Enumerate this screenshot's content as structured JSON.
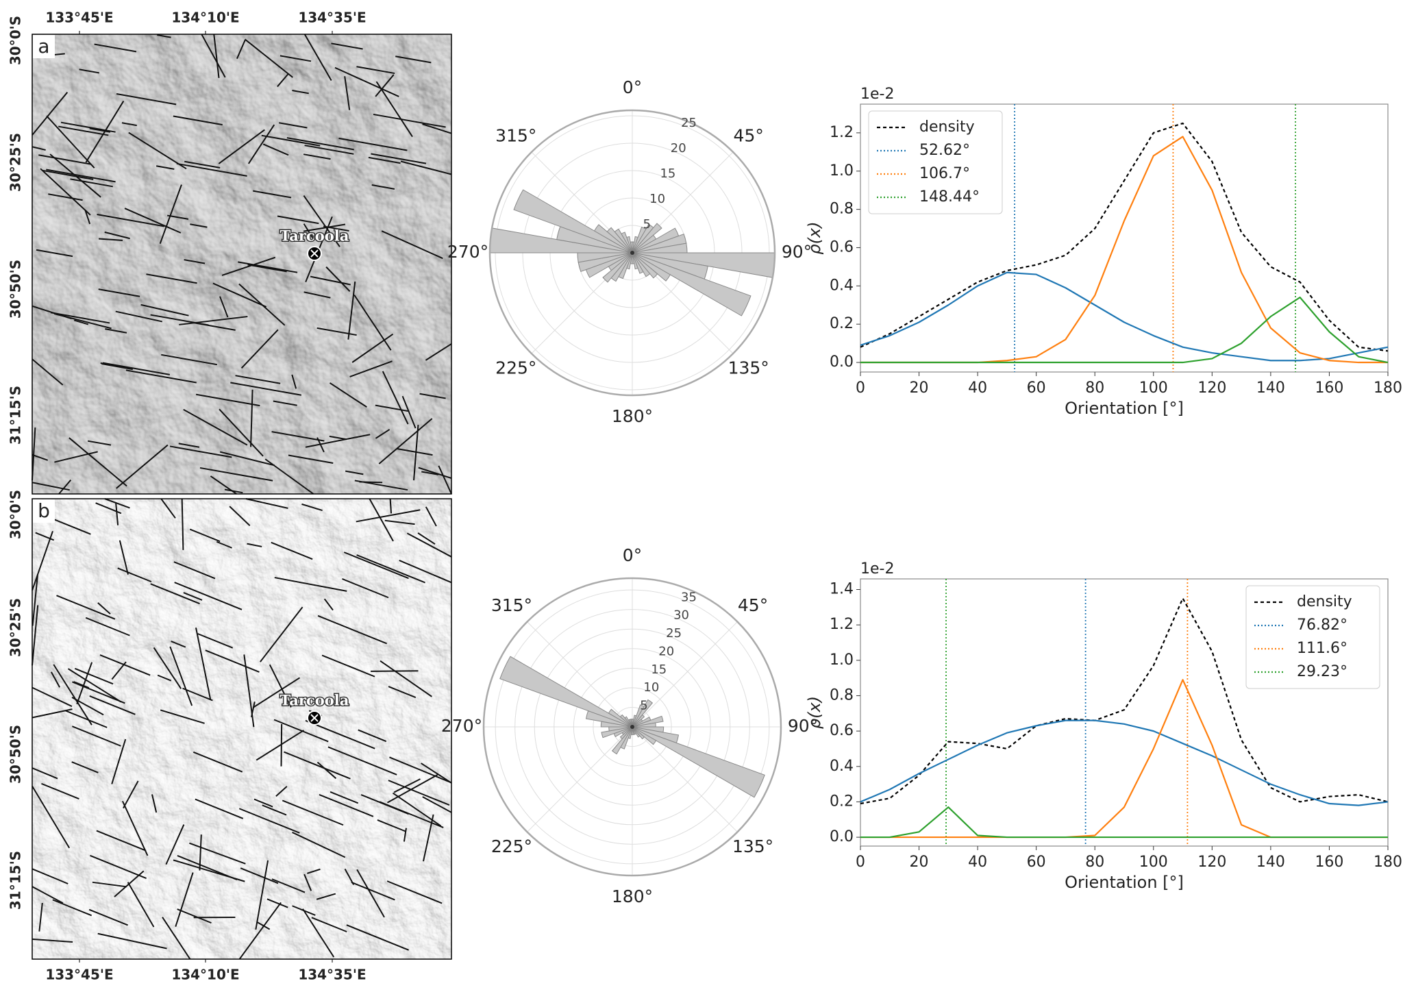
{
  "maps": [
    {
      "label": "a",
      "place": "Tarcoola",
      "lon_labels": [
        "133°45'E",
        "134°10'E",
        "134°35'E"
      ],
      "lat_labels": [
        "30°0'S",
        "30°25'S",
        "30°50'S",
        "31°15'S"
      ]
    },
    {
      "label": "b",
      "place": "Tarcoola",
      "lon_labels": [
        "133°45'E",
        "134°10'E",
        "134°35'E"
      ],
      "lat_labels": [
        "30°0'S",
        "30°25'S",
        "30°50'S",
        "31°15'S"
      ]
    }
  ],
  "chart_data": [
    {
      "type": "polar_bar",
      "angles": [
        5,
        15,
        25,
        35,
        45,
        55,
        65,
        75,
        85,
        95,
        105,
        115,
        125,
        135,
        145,
        155,
        165,
        175,
        185,
        195,
        205,
        215,
        225,
        235,
        245,
        255,
        265,
        275,
        285,
        295,
        305,
        315,
        325,
        335,
        345,
        355
      ],
      "values": [
        2,
        3,
        5,
        6,
        7,
        5,
        9,
        10,
        10,
        26,
        14,
        23,
        8,
        6,
        5,
        4,
        3,
        2,
        2,
        3,
        5,
        6,
        7,
        5,
        9,
        10,
        10,
        26,
        14,
        23,
        8,
        6,
        5,
        4,
        3,
        2
      ],
      "color": "#c8c8c8",
      "rlim": [
        0,
        26
      ],
      "rticks": [
        5,
        10,
        15,
        20,
        25
      ],
      "angle_ticks": [
        {
          "value": 0,
          "label": "0°"
        },
        {
          "value": 45,
          "label": "45°"
        },
        {
          "value": 90,
          "label": "90°"
        },
        {
          "value": 135,
          "label": "135°"
        },
        {
          "value": 180,
          "label": "180°"
        },
        {
          "value": 225,
          "label": "225°"
        },
        {
          "value": 270,
          "label": "270°"
        },
        {
          "value": 315,
          "label": "315°"
        }
      ]
    },
    {
      "type": "line",
      "x": [
        0,
        10,
        20,
        30,
        40,
        50,
        60,
        70,
        80,
        90,
        100,
        110,
        120,
        130,
        140,
        150,
        160,
        170,
        180
      ],
      "series": [
        {
          "name": "density",
          "color": "#000000",
          "values": [
            0.08,
            0.15,
            0.24,
            0.33,
            0.42,
            0.48,
            0.51,
            0.56,
            0.7,
            0.95,
            1.2,
            1.25,
            1.05,
            0.68,
            0.5,
            0.42,
            0.22,
            0.08,
            0.06
          ]
        },
        {
          "name": "52.62°",
          "color": "#1f77b4",
          "peak": 52.62,
          "values": [
            0.09,
            0.14,
            0.21,
            0.3,
            0.4,
            0.47,
            0.46,
            0.39,
            0.3,
            0.21,
            0.14,
            0.08,
            0.05,
            0.03,
            0.01,
            0.01,
            0.02,
            0.05,
            0.08
          ]
        },
        {
          "name": "106.7°",
          "color": "#ff7f0e",
          "peak": 106.7,
          "values": [
            0,
            0,
            0,
            0,
            0,
            0.01,
            0.03,
            0.12,
            0.35,
            0.74,
            1.08,
            1.18,
            0.9,
            0.47,
            0.18,
            0.05,
            0.01,
            0,
            0
          ]
        },
        {
          "name": "148.44°",
          "color": "#2ca02c",
          "peak": 148.44,
          "values": [
            0,
            0,
            0,
            0,
            0,
            0,
            0,
            0,
            0,
            0,
            0,
            0,
            0.02,
            0.1,
            0.24,
            0.34,
            0.16,
            0.03,
            0
          ]
        }
      ],
      "xlim": [
        0,
        180
      ],
      "xticks": [
        0,
        20,
        40,
        60,
        80,
        100,
        120,
        140,
        160,
        180
      ],
      "ylim": [
        -0.05,
        1.35
      ],
      "yticks": [
        {
          "value": 0,
          "label": "0.0"
        },
        0.2,
        0.4,
        0.6,
        0.8,
        {
          "value": 1,
          "label": "1.0"
        },
        1.2
      ],
      "offset_text": "1e-2",
      "xlabel": "Orientation [°]",
      "ylabel": "ρ(x)",
      "legend": "upper left"
    },
    {
      "type": "polar_bar",
      "angles": [
        5,
        15,
        25,
        35,
        45,
        55,
        65,
        75,
        85,
        95,
        105,
        115,
        125,
        135,
        145,
        155,
        165,
        175,
        185,
        195,
        205,
        215,
        225,
        235,
        245,
        255,
        265,
        275,
        285,
        295,
        305,
        315,
        325,
        335,
        345,
        355
      ],
      "values": [
        2,
        3,
        6,
        8,
        4,
        3,
        5,
        8,
        6,
        8,
        12,
        36,
        7,
        4,
        3,
        2,
        2,
        2,
        2,
        3,
        6,
        8,
        4,
        3,
        5,
        8,
        6,
        8,
        12,
        36,
        7,
        4,
        3,
        2,
        2,
        2
      ],
      "color": "#c8c8c8",
      "rlim": [
        0,
        38
      ],
      "rticks": [
        5,
        10,
        15,
        20,
        25,
        30,
        35
      ],
      "angle_ticks": [
        {
          "value": 0,
          "label": "0°"
        },
        {
          "value": 45,
          "label": "45°"
        },
        {
          "value": 90,
          "label": "90°"
        },
        {
          "value": 135,
          "label": "135°"
        },
        {
          "value": 180,
          "label": "180°"
        },
        {
          "value": 225,
          "label": "225°"
        },
        {
          "value": 270,
          "label": "270°"
        },
        {
          "value": 315,
          "label": "315°"
        }
      ]
    },
    {
      "type": "line",
      "x": [
        0,
        10,
        20,
        30,
        40,
        50,
        60,
        70,
        80,
        90,
        100,
        110,
        120,
        130,
        140,
        150,
        160,
        170,
        180
      ],
      "series": [
        {
          "name": "density",
          "color": "#000000",
          "values": [
            0.19,
            0.22,
            0.35,
            0.54,
            0.53,
            0.5,
            0.63,
            0.67,
            0.66,
            0.72,
            0.97,
            1.35,
            1.05,
            0.55,
            0.28,
            0.2,
            0.23,
            0.24,
            0.2
          ]
        },
        {
          "name": "76.82°",
          "color": "#1f77b4",
          "peak": 76.82,
          "values": [
            0.2,
            0.27,
            0.36,
            0.44,
            0.52,
            0.59,
            0.63,
            0.66,
            0.66,
            0.64,
            0.6,
            0.53,
            0.46,
            0.38,
            0.3,
            0.24,
            0.19,
            0.18,
            0.2
          ]
        },
        {
          "name": "111.6°",
          "color": "#ff7f0e",
          "peak": 111.6,
          "values": [
            0,
            0,
            0,
            0,
            0,
            0,
            0,
            0,
            0.01,
            0.17,
            0.5,
            0.89,
            0.52,
            0.07,
            0,
            0,
            0,
            0,
            0
          ]
        },
        {
          "name": "29.23°",
          "color": "#2ca02c",
          "peak": 29.23,
          "values": [
            0,
            0,
            0.03,
            0.17,
            0.01,
            0,
            0,
            0,
            0,
            0,
            0,
            0,
            0,
            0,
            0,
            0,
            0,
            0,
            0
          ]
        }
      ],
      "xlim": [
        0,
        180
      ],
      "xticks": [
        0,
        20,
        40,
        60,
        80,
        100,
        120,
        140,
        160,
        180
      ],
      "ylim": [
        -0.05,
        1.46
      ],
      "yticks": [
        {
          "value": 0,
          "label": "0.0"
        },
        0.2,
        0.4,
        0.6,
        0.8,
        {
          "value": 1,
          "label": "1.0"
        },
        1.2,
        1.4
      ],
      "offset_text": "1e-2",
      "xlabel": "Orientation [°]",
      "ylabel": "ρ(x)",
      "legend": "upper right"
    }
  ]
}
